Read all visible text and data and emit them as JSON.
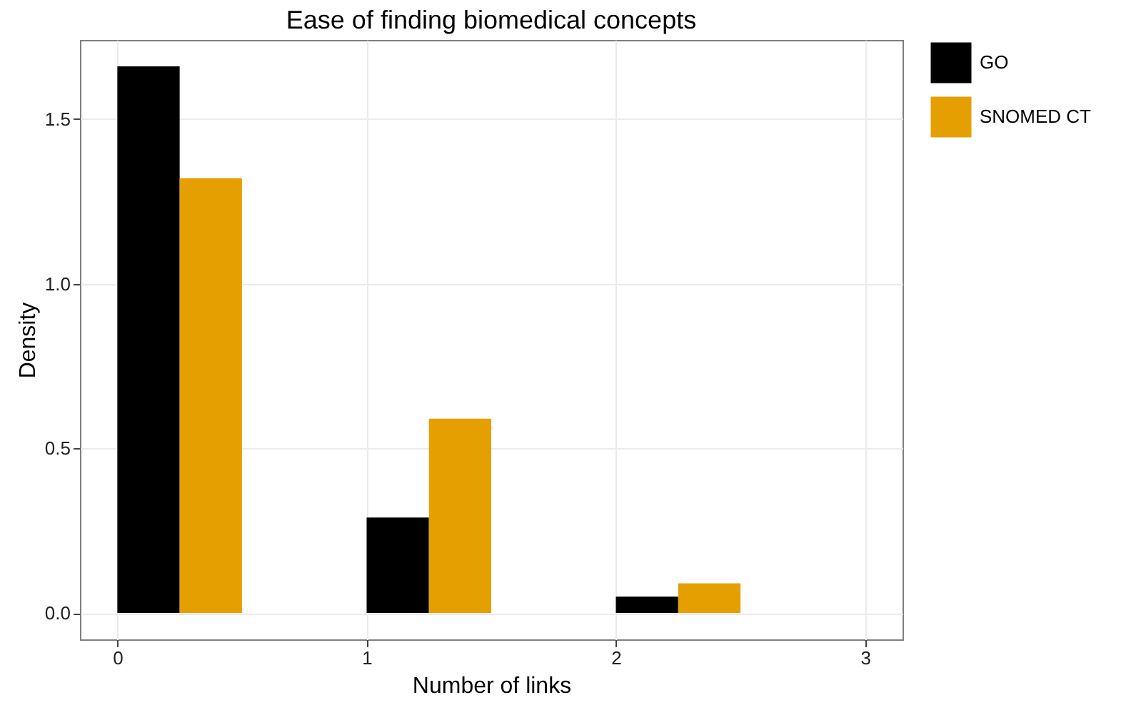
{
  "chart_data": {
    "type": "histogram",
    "title": "Ease of finding biomedical concepts",
    "xlabel": "Number of links",
    "ylabel": "Density",
    "bins": [
      0,
      0.5,
      1,
      1.5,
      2,
      2.5,
      3
    ],
    "series": [
      {
        "name": "GO",
        "color": "#000000",
        "values": [
          1.66,
          0,
          0.29,
          0,
          0.05,
          0
        ]
      },
      {
        "name": "SNOMED CT",
        "color": "#e69f00",
        "values": [
          1.32,
          0,
          0.59,
          0,
          0.09,
          0
        ]
      }
    ],
    "xlim": [
      -0.15,
      3.15
    ],
    "xticks": [
      0,
      1,
      2,
      3
    ],
    "ylim": [
      -0.08,
      1.74
    ],
    "yticks": [
      {
        "value": 0,
        "label": "0.0"
      },
      0.5,
      {
        "value": 1,
        "label": "1.0"
      },
      1.5
    ],
    "grid": true,
    "legend": "right"
  }
}
